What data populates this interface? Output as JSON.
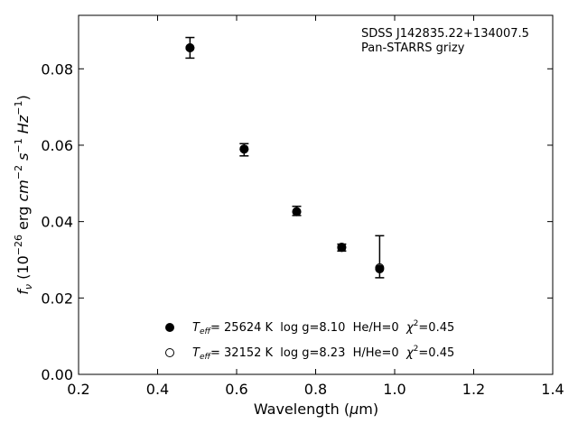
{
  "chart_data": {
    "type": "scatter",
    "xlabel": "Wavelength (µm)",
    "ylabel": "f_ν (10^-26 erg cm^-2 s^-1 Hz^-1)",
    "xlim": [
      0.2,
      1.4
    ],
    "ylim": [
      0.0,
      0.094
    ],
    "xticks": [
      0.2,
      0.4,
      0.6,
      0.8,
      1.0,
      1.2,
      1.4
    ],
    "xtick_labels": [
      "0.2",
      "0.4",
      "0.6",
      "0.8",
      "1.0",
      "1.2",
      "1.4"
    ],
    "yticks": [
      0.0,
      0.02,
      0.04,
      0.06,
      0.08
    ],
    "ytick_labels": [
      "0.00",
      "0.02",
      "0.04",
      "0.06",
      "0.08"
    ],
    "grid": false,
    "annotations": [
      "SDSS J142835.22+134007.5",
      "Pan-STARRS grizy"
    ],
    "legend_position": "lower-center",
    "observed": {
      "x": [
        0.482,
        0.619,
        0.752,
        0.866,
        0.962
      ],
      "y": [
        0.0855,
        0.0588,
        0.0428,
        0.0332,
        0.0308
      ],
      "yerr": [
        0.0027,
        0.0016,
        0.0012,
        0.0009,
        0.0055
      ]
    },
    "series": [
      {
        "name": "Teff= 25624 K  log g=8.10  He/H=0  χ2=0.45",
        "marker": "filled-circle",
        "x": [
          0.482,
          0.619,
          0.752,
          0.866,
          0.962
        ],
        "y": [
          0.0855,
          0.059,
          0.0426,
          0.0332,
          0.0276
        ]
      },
      {
        "name": "Teff= 32152 K  log g=8.23  H/He=0  χ2=0.45",
        "marker": "open-circle",
        "x": [
          0.482,
          0.619,
          0.752,
          0.866,
          0.962
        ],
        "y": [
          0.0855,
          0.059,
          0.0426,
          0.0333,
          0.0279
        ]
      }
    ]
  },
  "legend": [
    {
      "teff_label": "T",
      "teff_sub": "eff",
      "rest": "= 25624 K  log g=8.10  He/H=0  ",
      "chi": "χ",
      "chi_sup": "2",
      "chi_rest": "=0.45"
    },
    {
      "teff_label": "T",
      "teff_sub": "eff",
      "rest": "= 32152 K  log g=8.23  H/He=0  ",
      "chi": "χ",
      "chi_sup": "2",
      "chi_rest": "=0.45"
    }
  ],
  "labels": {
    "xlabel_main": "Wavelength (",
    "xlabel_mu": "µ",
    "xlabel_end": "m)",
    "ylabel_f": "f",
    "ylabel_nu": "ν",
    "ylabel_open": " (10",
    "ylabel_exp1": "−26",
    "ylabel_mid": " erg ",
    "ylabel_cm": "cm",
    "ylabel_exp2": "−2",
    "ylabel_s": " s",
    "ylabel_exp3": "−1",
    "ylabel_hz": " Hz",
    "ylabel_exp4": "−1",
    "ylabel_close": ")"
  }
}
